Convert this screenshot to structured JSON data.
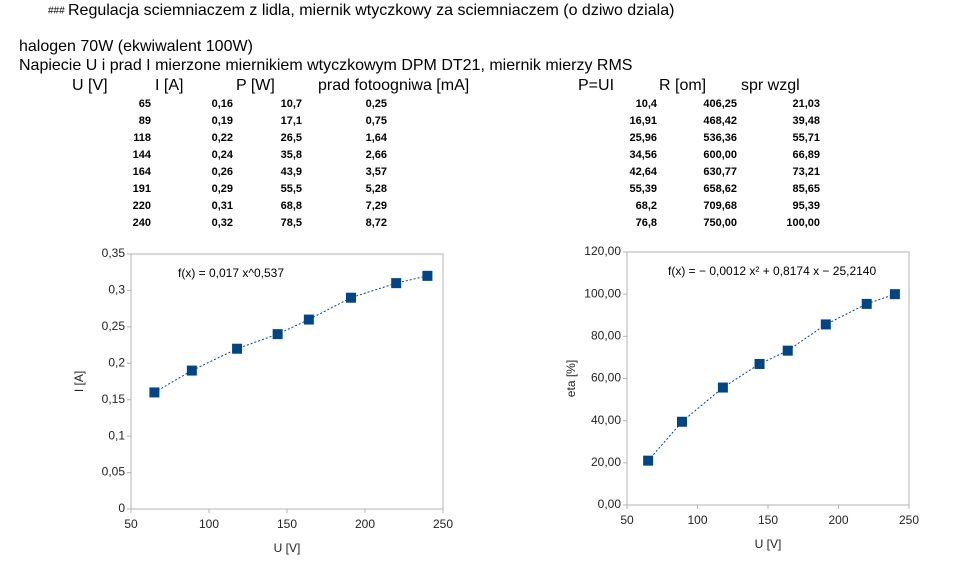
{
  "header": {
    "marker": "###",
    "title": "Regulacja sciemniaczem z lidla, miernik wtyczkowy za sciemniaczem (o dziwo dziala)",
    "lines": [
      "halogen 70W (ekwiwalent 100W)",
      "Napiecie U i prad I mierzone miernikiem wtyczkowym DPM DT21, miernik mierzy RMS"
    ]
  },
  "table": {
    "columns": [
      "U [V]",
      "I [A]",
      "P [W]",
      "prad fotoogniwa [mA]",
      "P=UI",
      "R [om]",
      "spr wzgl"
    ],
    "rows": [
      [
        "65",
        "0,16",
        "10,7",
        "0,25",
        "10,4",
        "406,25",
        "21,03"
      ],
      [
        "89",
        "0,19",
        "17,1",
        "0,75",
        "16,91",
        "468,42",
        "39,48"
      ],
      [
        "118",
        "0,22",
        "26,5",
        "1,64",
        "25,96",
        "536,36",
        "55,71"
      ],
      [
        "144",
        "0,24",
        "35,8",
        "2,66",
        "34,56",
        "600,00",
        "66,89"
      ],
      [
        "164",
        "0,26",
        "43,9",
        "3,57",
        "42,64",
        "630,77",
        "73,21"
      ],
      [
        "191",
        "0,29",
        "55,5",
        "5,28",
        "55,39",
        "658,62",
        "85,65"
      ],
      [
        "220",
        "0,31",
        "68,8",
        "7,29",
        "68,2",
        "709,68",
        "95,39"
      ],
      [
        "240",
        "0,32",
        "78,5",
        "8,72",
        "76,8",
        "750,00",
        "100,00"
      ]
    ]
  },
  "chart_data": [
    {
      "type": "scatter",
      "x_label": "U [V]",
      "y_label": "I [A]",
      "annotation": "f(x) = 0,017 x^0,537",
      "x": [
        65,
        89,
        118,
        144,
        164,
        191,
        220,
        240
      ],
      "series": [
        {
          "color": "#004586",
          "values": [
            0.16,
            0.19,
            0.22,
            0.24,
            0.26,
            0.29,
            0.31,
            0.32
          ]
        }
      ],
      "xlim": [
        50,
        250
      ],
      "xticks": [
        50,
        100,
        150,
        200,
        250
      ],
      "ylim": [
        0,
        0.35
      ],
      "yticks": [
        0,
        {
          "value": 0.05,
          "label": "0,05"
        },
        {
          "value": 0.1,
          "label": "0,1"
        },
        {
          "value": 0.15,
          "label": "0,15"
        },
        {
          "value": 0.2,
          "label": "0,2"
        },
        {
          "value": 0.25,
          "label": "0,25"
        },
        {
          "value": 0.3,
          "label": "0,3"
        },
        {
          "value": 0.35,
          "label": "0,35"
        }
      ],
      "trendline": true,
      "grid": false
    },
    {
      "type": "scatter",
      "x_label": "U [V]",
      "y_label": "eta [%]",
      "annotation": "f(x) = − 0,0012 x² + 0,8174 x − 25,2140",
      "x": [
        65,
        89,
        118,
        144,
        164,
        191,
        220,
        240
      ],
      "series": [
        {
          "color": "#004586",
          "values": [
            21.03,
            39.48,
            55.71,
            66.89,
            73.21,
            85.65,
            95.39,
            100
          ]
        }
      ],
      "xlim": [
        50,
        250
      ],
      "xticks": [
        50,
        100,
        150,
        200,
        250
      ],
      "ylim": [
        0,
        120
      ],
      "yticks": [
        {
          "value": 0,
          "label": "0,00"
        },
        {
          "value": 20,
          "label": "20,00"
        },
        {
          "value": 40,
          "label": "40,00"
        },
        {
          "value": 60,
          "label": "60,00"
        },
        {
          "value": 80,
          "label": "80,00"
        },
        {
          "value": 100,
          "label": "100,00"
        },
        {
          "value": 120,
          "label": "120,00"
        }
      ],
      "trendline": true,
      "grid": false
    }
  ]
}
